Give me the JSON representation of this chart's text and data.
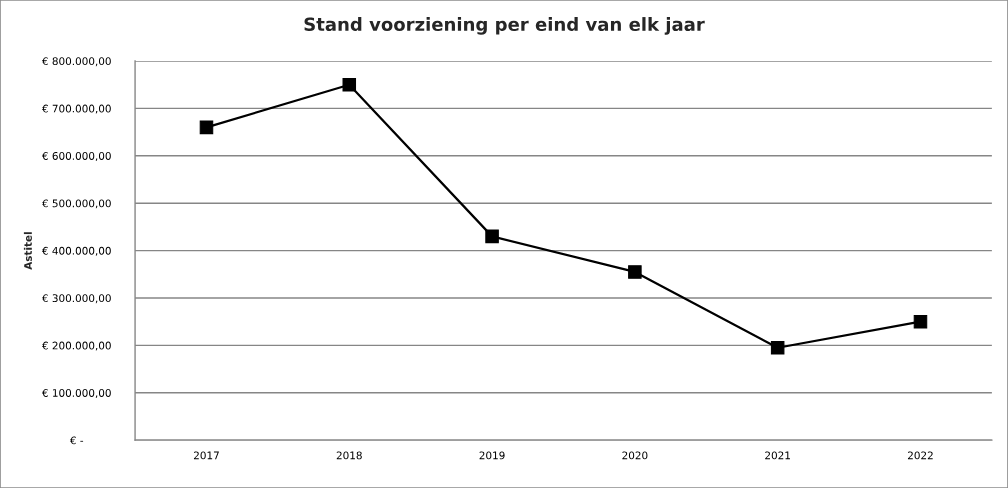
{
  "chart_data": {
    "type": "line",
    "title": "Stand voorziening per eind van elk jaar",
    "ylabel": "Astitel",
    "categories": [
      "2017",
      "2018",
      "2019",
      "2020",
      "2021",
      "2022"
    ],
    "series": [
      {
        "color": "#000000",
        "values": [
          660000,
          750000,
          430000,
          355000,
          195000,
          250000
        ]
      }
    ],
    "ylim": [
      0,
      800000
    ],
    "yticks": [
      {
        "value": 0,
        "label": "€ -"
      },
      {
        "value": 100000,
        "label": "€ 100.000,00"
      },
      {
        "value": 200000,
        "label": "€ 200.000,00"
      },
      {
        "value": 300000,
        "label": "€ 300.000,00"
      },
      {
        "value": 400000,
        "label": "€ 400.000,00"
      },
      {
        "value": 500000,
        "label": "€ 500.000,00"
      },
      {
        "value": 600000,
        "label": "€ 600.000,00"
      },
      {
        "value": 700000,
        "label": "€ 700.000,00"
      },
      {
        "value": 800000,
        "label": "€ 800.000,00"
      }
    ],
    "grid": "y",
    "marker": "square",
    "line_style": "solid"
  }
}
